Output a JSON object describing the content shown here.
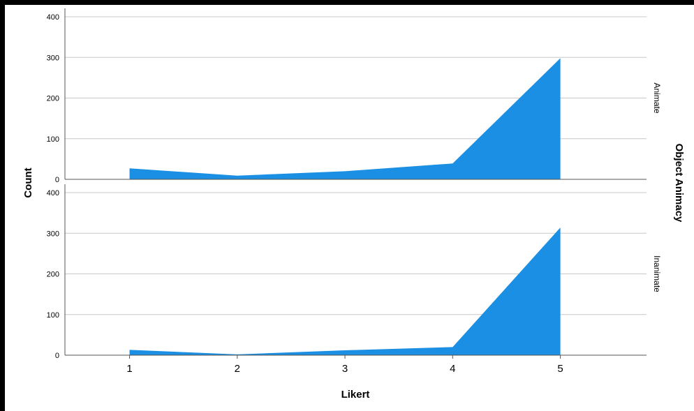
{
  "chart_data": {
    "type": "area",
    "xlabel": "Likert",
    "ylabel": "Count",
    "facet_label": "Object Animacy",
    "x": [
      1,
      2,
      3,
      4,
      5
    ],
    "x_ticks": [
      "1",
      "2",
      "3",
      "4",
      "5"
    ],
    "xlim": [
      0.4,
      5.8
    ],
    "y_ticks": [
      "0",
      "100",
      "200",
      "300",
      "400"
    ],
    "ylim": [
      0,
      400
    ],
    "grid": true,
    "fill_color": "#1a8fe3",
    "panels": [
      {
        "facet": "Animate",
        "values": [
          27,
          9,
          20,
          39,
          298
        ]
      },
      {
        "facet": "Inanimate",
        "values": [
          13,
          2,
          12,
          20,
          314
        ]
      }
    ]
  }
}
